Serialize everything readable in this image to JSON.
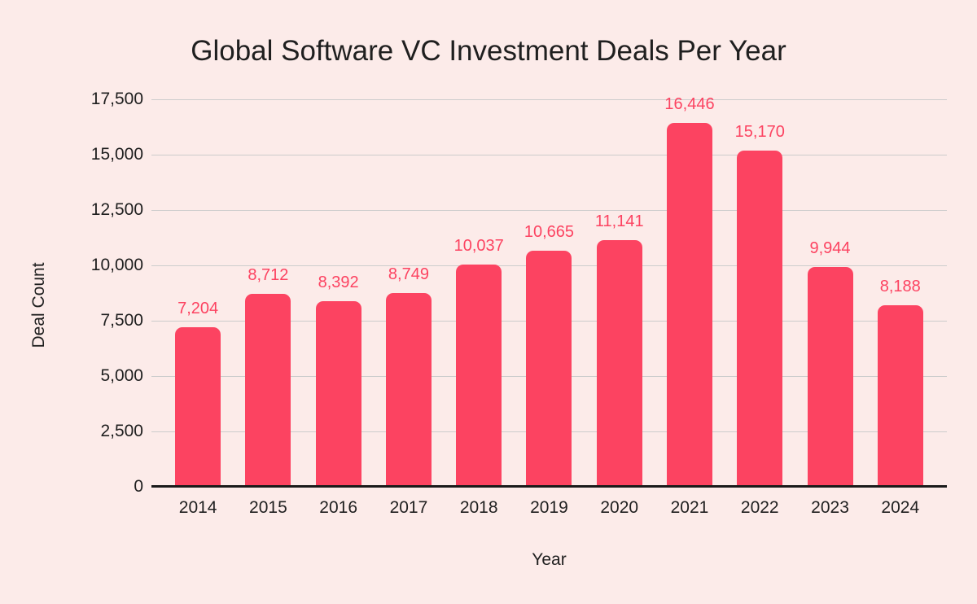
{
  "chart_data": {
    "type": "bar",
    "title": "Global Software VC Investment Deals Per Year",
    "xlabel": "Year",
    "ylabel": "Deal Count",
    "categories": [
      "2014",
      "2015",
      "2016",
      "2017",
      "2018",
      "2019",
      "2020",
      "2021",
      "2022",
      "2023",
      "2024"
    ],
    "values": [
      7204,
      8712,
      8392,
      8749,
      10037,
      10665,
      11141,
      16446,
      15170,
      9944,
      8188
    ],
    "data_labels": [
      "7,204",
      "8,712",
      "8,392",
      "8,749",
      "10,037",
      "10,665",
      "11,141",
      "16,446",
      "15,170",
      "9,944",
      "8,188"
    ],
    "ylim": [
      0,
      17500
    ],
    "yticks": [
      0,
      2500,
      5000,
      7500,
      10000,
      12500,
      15000,
      17500
    ],
    "ytick_labels": [
      "0",
      "2,500",
      "5,000",
      "7,500",
      "10,000",
      "12,500",
      "15,000",
      "17,500"
    ],
    "grid": true,
    "legend": false,
    "data_label_position": "above-bar"
  },
  "colors": {
    "background": "#fcebe9",
    "bar": "#fc4361",
    "data_label": "#fc4361",
    "grid": "#cccccc",
    "axis_line": "#1a1a1a",
    "text": "#1f1f1f"
  }
}
